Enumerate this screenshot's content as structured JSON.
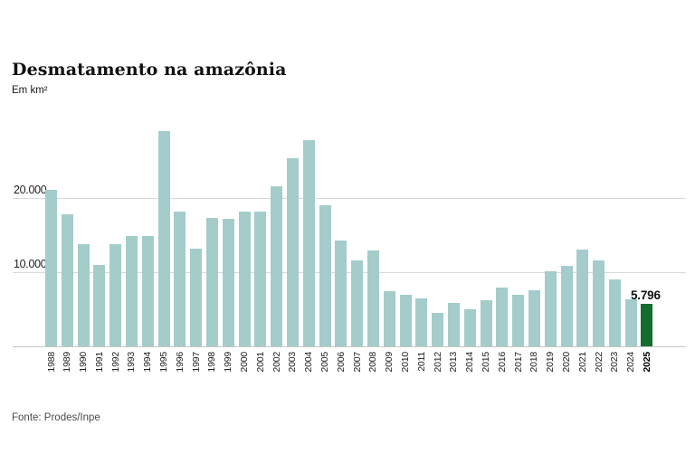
{
  "header": {
    "title": "Desmatamento na amazônia",
    "subtitle": "Em km²"
  },
  "footer": {
    "source": "Fonte: Prodes/Inpe"
  },
  "chart_data": {
    "type": "bar",
    "title": "Desmatamento na amazônia",
    "ylabel": "Em km²",
    "xlabel": "",
    "categories": [
      "1988",
      "1989",
      "1990",
      "1991",
      "1992",
      "1993",
      "1994",
      "1995",
      "1996",
      "1997",
      "1998",
      "1999",
      "2000",
      "2001",
      "2002",
      "2003",
      "2004",
      "2005",
      "2006",
      "2007",
      "2008",
      "2009",
      "2010",
      "2011",
      "2012",
      "2013",
      "2014",
      "2015",
      "2016",
      "2017",
      "2018",
      "2019",
      "2020",
      "2021",
      "2022",
      "2023",
      "2024",
      "2025"
    ],
    "values": [
      21050,
      17770,
      13730,
      11030,
      13786,
      14896,
      14896,
      29059,
      18161,
      13227,
      17383,
      17259,
      18226,
      18165,
      21651,
      25396,
      27772,
      19014,
      14286,
      11651,
      12911,
      7464,
      7000,
      6418,
      4571,
      5891,
      5012,
      6207,
      7893,
      6947,
      7536,
      10129,
      10851,
      13038,
      11594,
      9064,
      6288,
      5796
    ],
    "ylim": [
      0,
      30000
    ],
    "yticks": [
      {
        "value": 20000,
        "label": "20.000"
      },
      {
        "value": 10000,
        "label": "10.000"
      }
    ],
    "grid": true,
    "legend_position": "none",
    "bar_color": "#a3cccb",
    "highlight": {
      "category": "2025",
      "value": 5796,
      "label": "5.796",
      "color": "#166b30"
    },
    "source": "Fonte: Prodes/Inpe"
  }
}
